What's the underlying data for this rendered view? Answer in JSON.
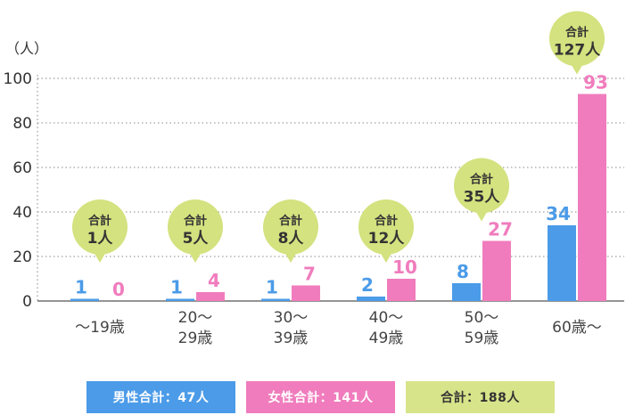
{
  "chart_data": {
    "type": "bar",
    "unit": "（人）",
    "yticks": [
      "0",
      "20",
      "40",
      "60",
      "80",
      "100"
    ],
    "ylim": [
      0,
      100
    ],
    "categories": [
      {
        "lines": [
          "～19歳"
        ]
      },
      {
        "lines": [
          "20～",
          "29歳"
        ]
      },
      {
        "lines": [
          "30～",
          "39歳"
        ]
      },
      {
        "lines": [
          "40～",
          "49歳"
        ]
      },
      {
        "lines": [
          "50～",
          "59歳"
        ]
      },
      {
        "lines": [
          "60歳～"
        ]
      }
    ],
    "series": [
      {
        "name": "男性",
        "values": [
          1,
          1,
          1,
          2,
          8,
          34
        ],
        "color": "#4b9be8"
      },
      {
        "name": "女性",
        "values": [
          0,
          4,
          7,
          10,
          27,
          93
        ],
        "color": "#f07cbd"
      }
    ],
    "totals": {
      "label": "合計",
      "values": [
        "1人",
        "5人",
        "8人",
        "12人",
        "35人",
        "127人"
      ],
      "color": "#d4e27f"
    },
    "legend": [
      {
        "label": "男性合計：47人",
        "color": "#4b9be8"
      },
      {
        "label": "女性合計：141人",
        "color": "#f07cbd"
      },
      {
        "label": "合計：188人",
        "color": "#d8e48a"
      }
    ]
  }
}
